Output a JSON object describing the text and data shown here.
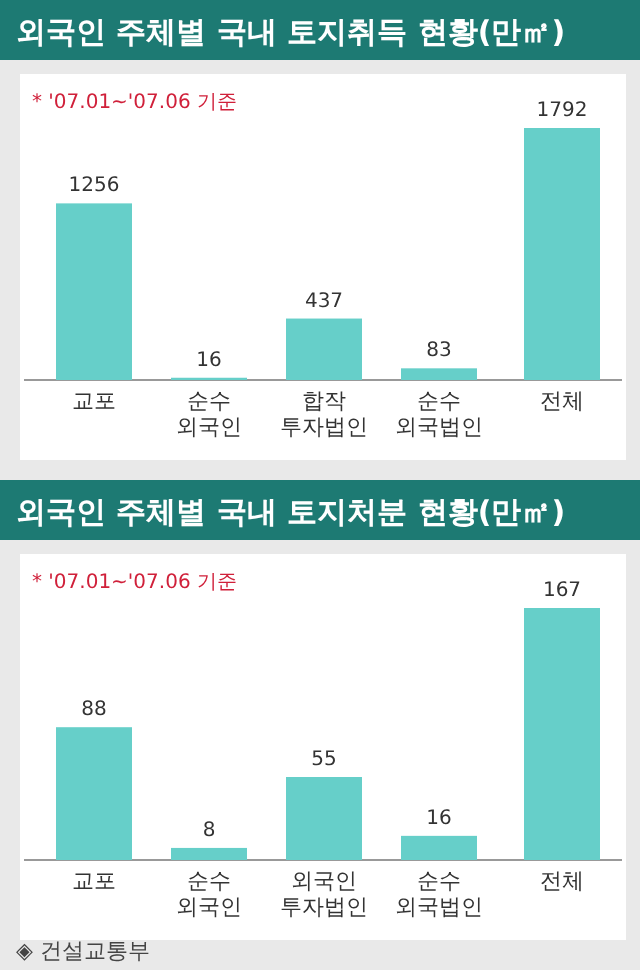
{
  "chart_data": [
    {
      "type": "bar",
      "title": "외국인 주체별 국내 토지취득 현황(만㎡)",
      "annotations": [
        "* '07.01~'07.06 기준"
      ],
      "categories": [
        "교포",
        "순수\n외국인",
        "합작\n투자법인",
        "순수\n외국법인",
        "전체"
      ],
      "values": [
        1256,
        16,
        437,
        83,
        1792
      ],
      "color": "#66cfc9",
      "data_labels": true
    },
    {
      "type": "bar",
      "title": "외국인 주체별 국내 토지처분 현황(만㎡)",
      "annotations": [
        "* '07.01~'07.06 기준",
        "◈ 건설교통부"
      ],
      "categories": [
        "교포",
        "순수\n외국인",
        "외국인\n투자법인",
        "순수\n외국법인",
        "전체"
      ],
      "values": [
        88,
        8,
        55,
        16,
        167
      ],
      "color": "#66cfc9",
      "data_labels": true
    }
  ]
}
